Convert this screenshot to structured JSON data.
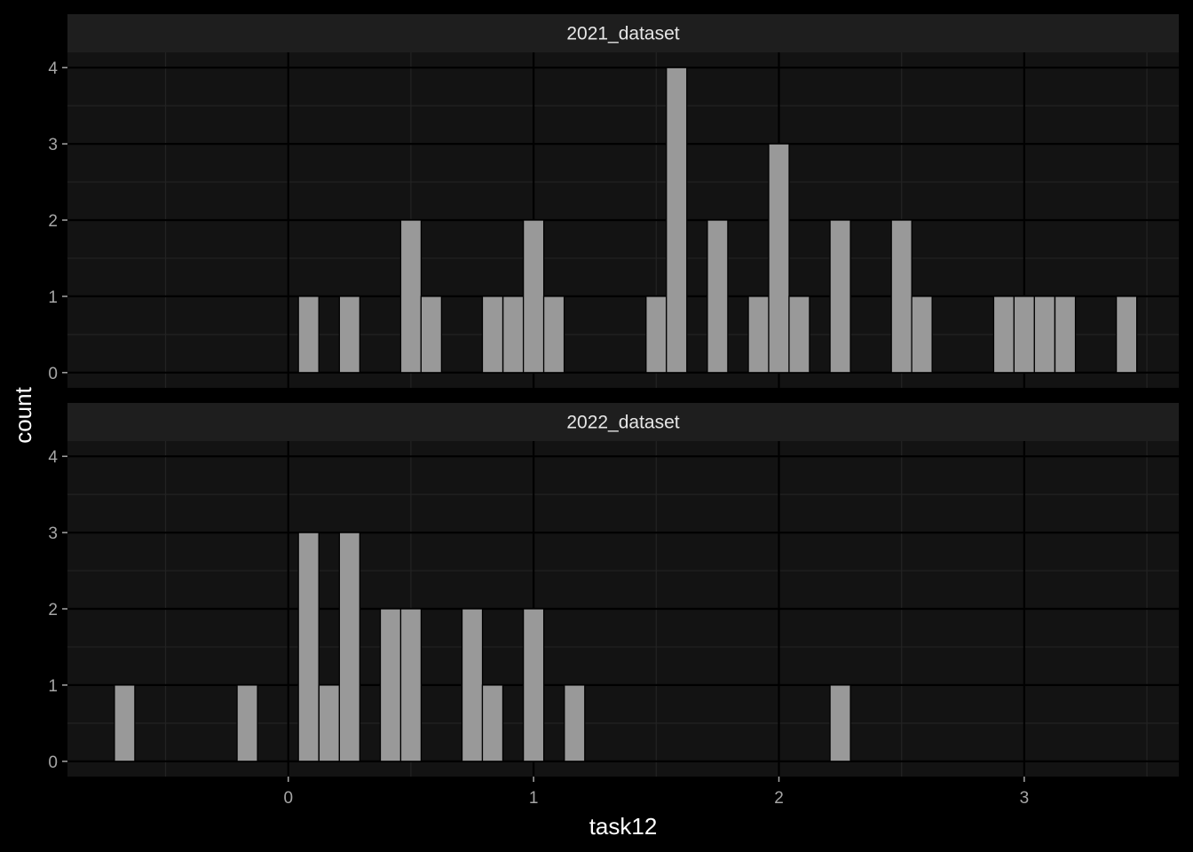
{
  "chart_data": {
    "type": "bar",
    "subtype": "faceted-histogram",
    "xlabel": "task12",
    "ylabel": "count",
    "xlim": [
      -0.9,
      3.63
    ],
    "ylim": [
      -0.2,
      4.2
    ],
    "x_ticks": [
      0,
      1,
      2,
      3
    ],
    "y_ticks": [
      0,
      1,
      2,
      3,
      4
    ],
    "binwidth": 0.0833,
    "grid": true,
    "bar_fill": "#999999",
    "bar_stroke": "#000000",
    "panel_bg": "#131313",
    "strip_bg": "#1e1e1e",
    "facets": [
      {
        "name": "2021_dataset",
        "bins": [
          {
            "x": 0.083,
            "count": 1
          },
          {
            "x": 0.25,
            "count": 1
          },
          {
            "x": 0.5,
            "count": 2
          },
          {
            "x": 0.583,
            "count": 1
          },
          {
            "x": 0.833,
            "count": 1
          },
          {
            "x": 0.917,
            "count": 1
          },
          {
            "x": 1.0,
            "count": 2
          },
          {
            "x": 1.083,
            "count": 1
          },
          {
            "x": 1.5,
            "count": 1
          },
          {
            "x": 1.583,
            "count": 4
          },
          {
            "x": 1.75,
            "count": 2
          },
          {
            "x": 1.917,
            "count": 1
          },
          {
            "x": 2.0,
            "count": 3
          },
          {
            "x": 2.083,
            "count": 1
          },
          {
            "x": 2.25,
            "count": 2
          },
          {
            "x": 2.5,
            "count": 2
          },
          {
            "x": 2.583,
            "count": 1
          },
          {
            "x": 2.917,
            "count": 1
          },
          {
            "x": 3.0,
            "count": 1
          },
          {
            "x": 3.083,
            "count": 1
          },
          {
            "x": 3.167,
            "count": 1
          },
          {
            "x": 3.417,
            "count": 1
          }
        ]
      },
      {
        "name": "2022_dataset",
        "bins": [
          {
            "x": -0.667,
            "count": 1
          },
          {
            "x": -0.167,
            "count": 1
          },
          {
            "x": 0.083,
            "count": 3
          },
          {
            "x": 0.167,
            "count": 1
          },
          {
            "x": 0.25,
            "count": 3
          },
          {
            "x": 0.417,
            "count": 2
          },
          {
            "x": 0.5,
            "count": 2
          },
          {
            "x": 0.75,
            "count": 2
          },
          {
            "x": 0.833,
            "count": 1
          },
          {
            "x": 1.0,
            "count": 2
          },
          {
            "x": 1.167,
            "count": 1
          },
          {
            "x": 2.25,
            "count": 1
          }
        ]
      }
    ]
  }
}
